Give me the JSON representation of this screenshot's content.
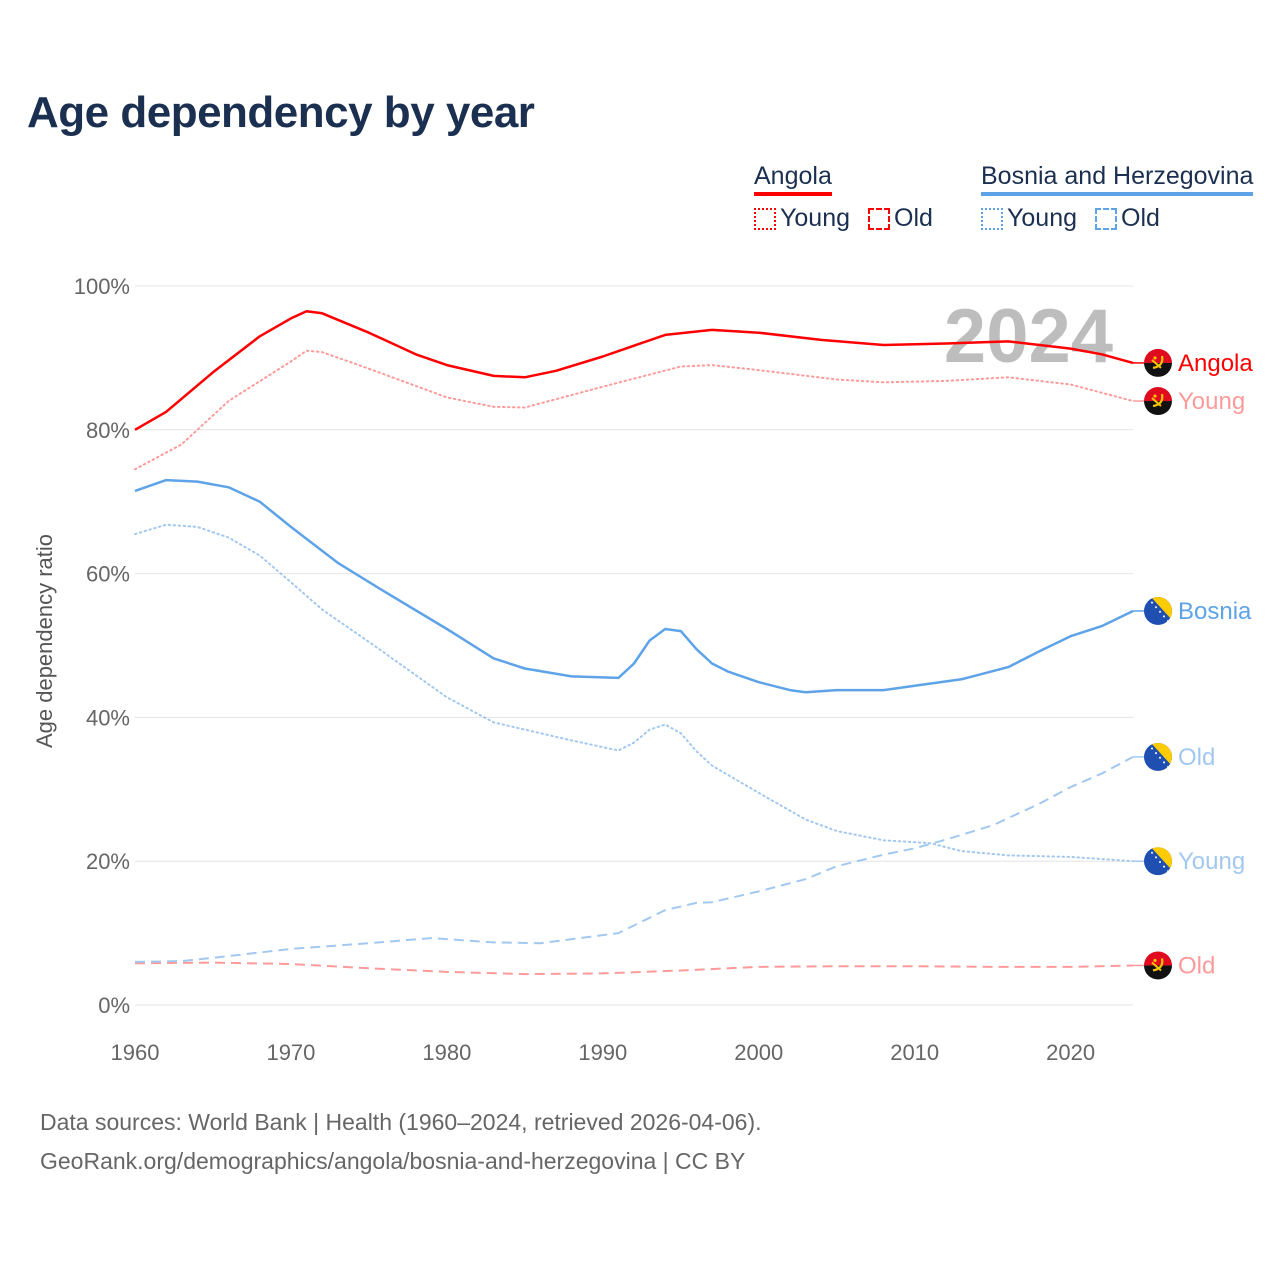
{
  "title": "Age dependency by year",
  "legend": [
    {
      "name": "Angola",
      "color": "#ff0000",
      "items": [
        {
          "label": "Young",
          "style": "dotted"
        },
        {
          "label": "Old",
          "style": "dashed"
        }
      ]
    },
    {
      "name": "Bosnia and Herzegovina",
      "color": "#5ea3e8",
      "items": [
        {
          "label": "Young",
          "style": "dotted"
        },
        {
          "label": "Old",
          "style": "dashed"
        }
      ]
    }
  ],
  "chart_data": {
    "type": "line",
    "title": "Age dependency by year",
    "ylabel": "Age dependency ratio",
    "xlabel": "",
    "xlim": [
      1960,
      2024
    ],
    "ylim": [
      0,
      100
    ],
    "x_ticks": [
      "1960",
      "1970",
      "1980",
      "1990",
      "2000",
      "2010",
      "2020"
    ],
    "y_ticks": [
      "0%",
      "20%",
      "40%",
      "60%",
      "80%",
      "100%"
    ],
    "y_tick_values": [
      0,
      20,
      40,
      60,
      80,
      100
    ],
    "year_watermark": "2024",
    "grid": true,
    "series": [
      {
        "name": "Angola",
        "end_label": "Angola",
        "country": "angola",
        "color": "#ff0000",
        "dash": "solid",
        "x": [
          1960,
          1962,
          1965,
          1968,
          1970,
          1971,
          1972,
          1975,
          1978,
          1980,
          1983,
          1985,
          1987,
          1990,
          1994,
          1997,
          2000,
          2004,
          2008,
          2012,
          2016,
          2020,
          2022,
          2024
        ],
        "y": [
          80,
          82.5,
          88,
          93,
          95.5,
          96.5,
          96.2,
          93.5,
          90.5,
          89,
          87.5,
          87.3,
          88.2,
          90.2,
          93.2,
          93.9,
          93.5,
          92.5,
          91.8,
          92.0,
          92.3,
          91.3,
          90.5,
          89.3
        ]
      },
      {
        "name": "Angola Young",
        "end_label": "Young",
        "country": "angola",
        "color": "#ff9a9a",
        "dash": "dotted",
        "x": [
          1960,
          1963,
          1966,
          1970,
          1971,
          1972,
          1975,
          1980,
          1983,
          1985,
          1990,
          1995,
          1997,
          2000,
          2005,
          2008,
          2012,
          2016,
          2020,
          2024
        ],
        "y": [
          74.5,
          78,
          84,
          89.5,
          91,
          90.8,
          88.5,
          84.5,
          83.2,
          83.1,
          86,
          88.8,
          89,
          88.3,
          87,
          86.6,
          86.8,
          87.3,
          86.3,
          84
        ]
      },
      {
        "name": "Angola Old",
        "end_label": "Old",
        "country": "angola",
        "color": "#ff9a9a",
        "dash": "dashed",
        "x": [
          1960,
          1965,
          1970,
          1975,
          1980,
          1985,
          1990,
          1995,
          2000,
          2005,
          2010,
          2015,
          2020,
          2024
        ],
        "y": [
          5.8,
          5.9,
          5.7,
          5.1,
          4.6,
          4.3,
          4.4,
          4.8,
          5.3,
          5.4,
          5.4,
          5.3,
          5.3,
          5.5
        ]
      },
      {
        "name": "Bosnia",
        "end_label": "Bosnia",
        "country": "bosnia",
        "color": "#5ea3e8",
        "dash": "solid",
        "x": [
          1960,
          1962,
          1964,
          1966,
          1968,
          1970,
          1973,
          1976,
          1980,
          1983,
          1985,
          1988,
          1991,
          1992,
          1993,
          1994,
          1995,
          1996,
          1997,
          1998,
          2000,
          2002,
          2003,
          2005,
          2008,
          2010,
          2013,
          2016,
          2018,
          2020,
          2022,
          2024
        ],
        "y": [
          71.5,
          73,
          72.8,
          72,
          70,
          66.5,
          61.5,
          57.5,
          52.3,
          48.2,
          46.8,
          45.7,
          45.5,
          47.5,
          50.7,
          52.3,
          52,
          49.5,
          47.5,
          46.4,
          44.9,
          43.8,
          43.5,
          43.8,
          43.8,
          44.4,
          45.3,
          47,
          49.2,
          51.3,
          52.7,
          54.8
        ]
      },
      {
        "name": "Bosnia Old",
        "end_label": "Old",
        "country": "bosnia",
        "color": "#a3c8f0",
        "dash": "dashed",
        "x": [
          1960,
          1963,
          1966,
          1970,
          1975,
          1979,
          1983,
          1986,
          1991,
          1994,
          1996,
          1997,
          2000,
          2003,
          2005,
          2008,
          2010,
          2012,
          2015,
          2018,
          2020,
          2022,
          2024
        ],
        "y": [
          6,
          6.1,
          6.8,
          7.8,
          8.6,
          9.3,
          8.7,
          8.6,
          10,
          13.2,
          14.2,
          14.3,
          15.8,
          17.5,
          19.3,
          20.9,
          21.8,
          23,
          25,
          28,
          30.3,
          32.2,
          34.5
        ]
      },
      {
        "name": "Bosnia Young",
        "end_label": "Young",
        "country": "bosnia",
        "color": "#a3c8f0",
        "dash": "dotted",
        "x": [
          1960,
          1962,
          1964,
          1966,
          1968,
          1970,
          1972,
          1975,
          1980,
          1983,
          1985,
          1988,
          1991,
          1992,
          1993,
          1994,
          1995,
          1996,
          1997,
          2000,
          2003,
          2005,
          2008,
          2011,
          2013,
          2016,
          2020,
          2024
        ],
        "y": [
          65.5,
          66.8,
          66.5,
          65,
          62.5,
          58.8,
          55,
          50.5,
          42.8,
          39.3,
          38.3,
          36.8,
          35.4,
          36.5,
          38.3,
          39,
          37.8,
          35.3,
          33.3,
          29.5,
          25.8,
          24.2,
          22.9,
          22.5,
          21.4,
          20.8,
          20.6,
          20
        ]
      }
    ]
  },
  "footer": {
    "sources": "Data sources: World Bank | Health (1960–2024, retrieved 2026-04-06).",
    "link": "GeoRank.org/demographics/angola/bosnia-and-herzegovina | CC BY"
  }
}
